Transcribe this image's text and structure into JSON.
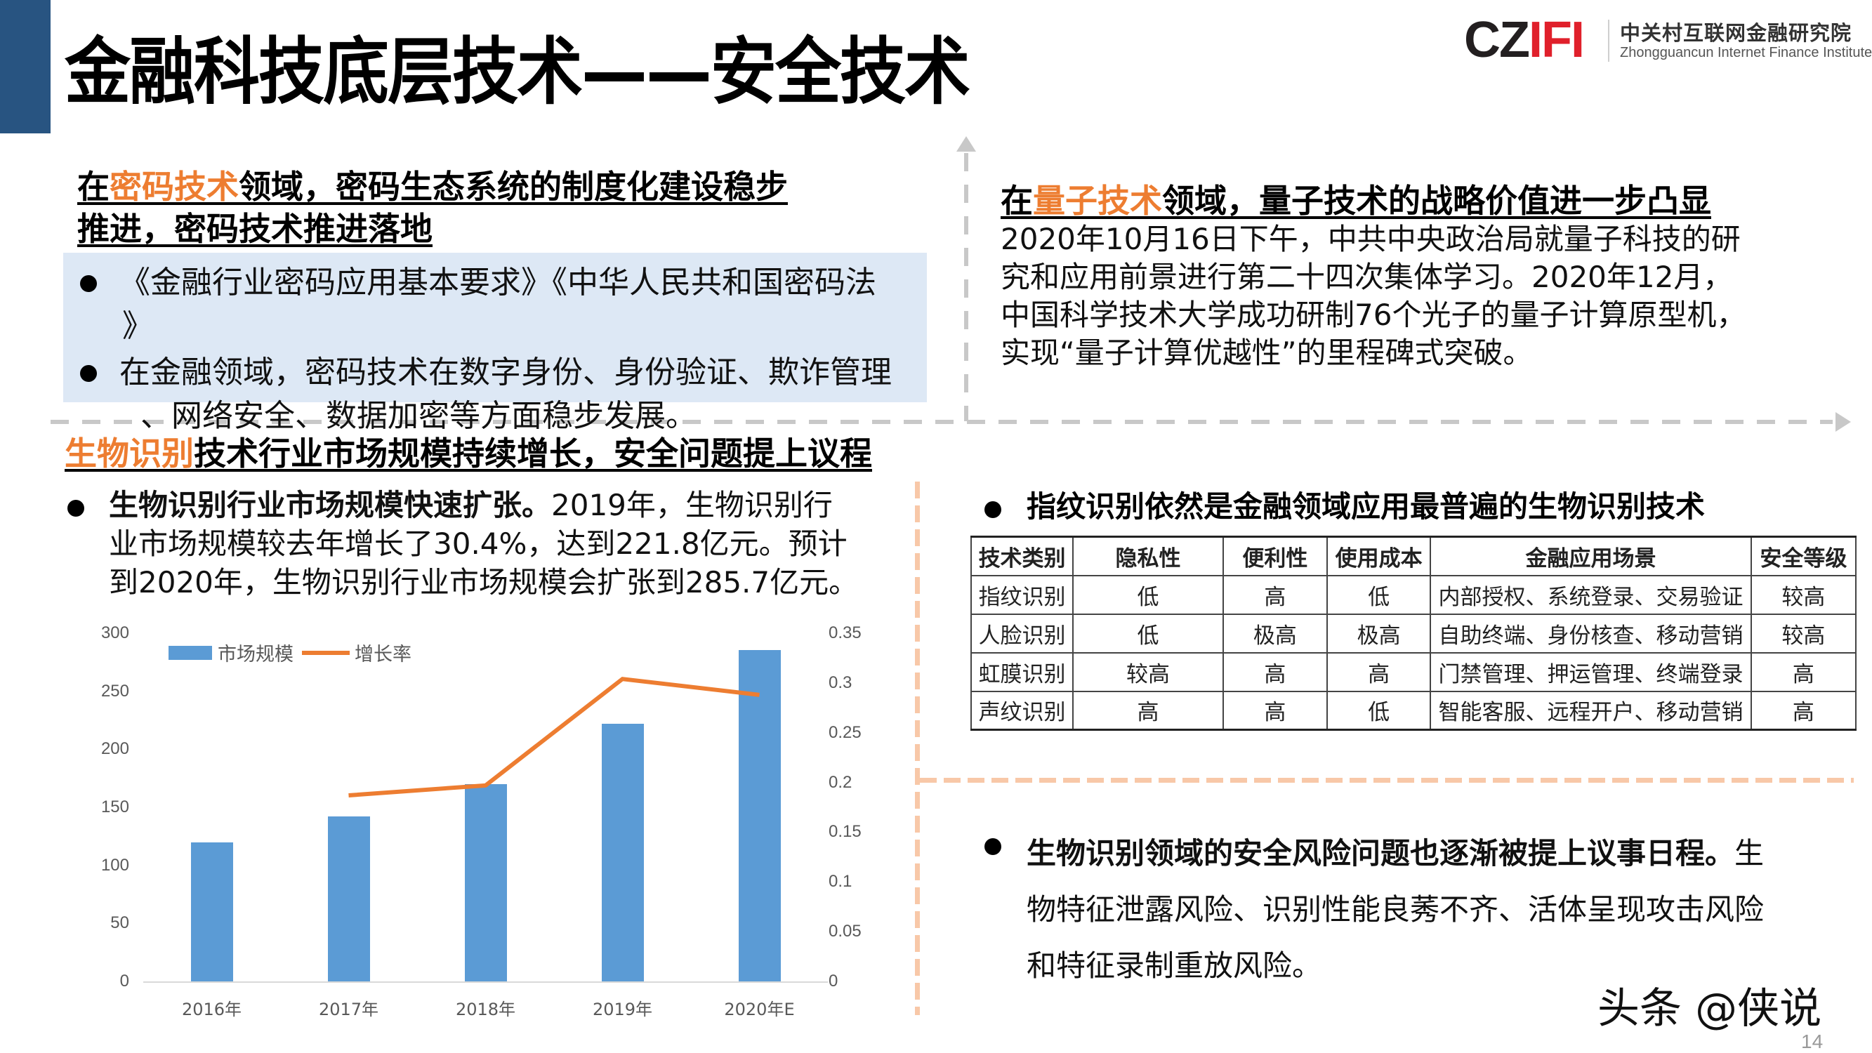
{
  "header": {
    "title": "金融科技底层技术——安全技术",
    "logo": {
      "mark_cz": "CZ",
      "mark_ifi": "IFI",
      "name_cn": "中关村互联网金融研究院",
      "name_en": "Zhongguancun Internet Finance Institute"
    }
  },
  "crypto": {
    "heading_prefix": "在",
    "heading_highlight": "密码技术",
    "heading_line1_rest": "领域，密码生态系统的制度化建设稳步",
    "heading_line2": "推进，密码技术推进落地",
    "items": [
      {
        "line1": "《金融行业密码应用基本要求》《中华人民共和国密码法",
        "line2": "》"
      },
      {
        "line1": "在金融领域，密码技术在数字身份、身份验证、欺诈管理",
        "line2": "、网络安全、数据加密等方面稳步发展。"
      }
    ]
  },
  "quantum": {
    "heading_prefix": "在",
    "heading_highlight": "量子技术",
    "heading_rest": "领域，量子技术的战略价值进一步凸显",
    "body_lines": [
      "2020年10月16日下午，中共中央政治局就量子科技的研",
      "究和应用前景进行第二十四次集体学习。2020年12月，",
      "中国科学技术大学成功研制76个光子的量子计算原型机，",
      "实现“量子计算优越性”的里程碑式突破。"
    ]
  },
  "biometrics": {
    "heading_highlight": "生物识别",
    "heading_rest": "技术行业市场规模持续增长，安全问题提上议程",
    "market_bold": "生物识别行业市场规模快速扩张。",
    "market_line1_rest": "2019年，生物识别行",
    "market_line2": "业市场规模较去年增长了30.4%，达到221.8亿元。预计",
    "market_line3": "到2020年，生物识别行业市场规模会扩张到285.7亿元。",
    "fingerprint_heading": "指纹识别依然是金融领域应用最普遍的生物识别技术",
    "risk_bold": "生物识别领域的安全风险问题也逐渐被提上议事日程。",
    "risk_line1_rest": "生",
    "risk_line2": "物特征泄露风险、识别性能良莠不齐、活体呈现攻击风险",
    "risk_line3": "和特征录制重放风险。"
  },
  "table": {
    "headers": [
      "技术类别",
      "隐私性",
      "便利性",
      "使用成本",
      "金融应用场景",
      "安全等级"
    ],
    "rows": [
      [
        "指纹识别",
        "低",
        "高",
        "低",
        "内部授权、系统登录、交易验证",
        "较高"
      ],
      [
        "人脸识别",
        "低",
        "极高",
        "极高",
        "自助终端、身份核查、移动营销",
        "较高"
      ],
      [
        "虹膜识别",
        "较高",
        "高",
        "高",
        "门禁管理、押运管理、终端登录",
        "高"
      ],
      [
        "声纹识别",
        "高",
        "高",
        "低",
        "智能客服、远程开户、移动营销",
        "高"
      ]
    ]
  },
  "chart_data": {
    "type": "bar",
    "title": "",
    "categories": [
      "2016年",
      "2017年",
      "2018年",
      "2019年",
      "2020年E"
    ],
    "series": [
      {
        "name": "市场规模",
        "type": "bar",
        "axis": "left",
        "color": "#5b9bd5",
        "values": [
          120,
          142,
          170,
          221.8,
          285.7
        ]
      },
      {
        "name": "增长率",
        "type": "line",
        "axis": "right",
        "color": "#ed7d31",
        "values": [
          null,
          0.187,
          0.197,
          0.304,
          0.288
        ]
      }
    ],
    "y_left": {
      "ticks": [
        "300",
        "250",
        "200",
        "150",
        "100",
        "50",
        "0"
      ],
      "ylim": [
        0,
        300
      ]
    },
    "y_right": {
      "ticks": [
        "0.35",
        "0.3",
        "0.25",
        "0.2",
        "0.15",
        "0.1",
        "0.05",
        "0"
      ],
      "ylim": [
        0,
        0.35
      ]
    },
    "legend": {
      "position": "top-left",
      "entries": [
        "市场规模",
        "增长率"
      ]
    },
    "grid": false,
    "xlabel": "",
    "ylabel": ""
  },
  "footer": {
    "watermark": "头条 @侠说",
    "page_number": "14"
  },
  "colors": {
    "accent_orange": "#ed7d31",
    "bar_blue": "#5b9bd5",
    "title_bar": "#285481",
    "highlight_box": "#dde8f5"
  }
}
